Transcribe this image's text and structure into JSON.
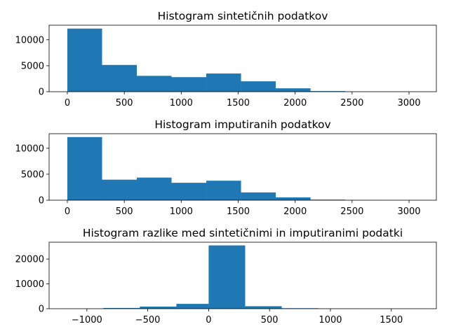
{
  "chart_data": [
    {
      "type": "bar",
      "title": "Histogram sintetičnih podatkov",
      "xlabel": "",
      "ylabel": "",
      "xlim": [
        -160,
        3240
      ],
      "ylim": [
        0,
        12800
      ],
      "xticks": [
        0,
        500,
        1000,
        1500,
        2000,
        2500,
        3000
      ],
      "yticks": [
        0,
        5000,
        10000
      ],
      "bin_edges": [
        0,
        305,
        610,
        915,
        1220,
        1525,
        1830,
        2135,
        2440,
        2745,
        3050
      ],
      "values": [
        12150,
        5150,
        3050,
        2800,
        3500,
        2000,
        650,
        120,
        30,
        10
      ],
      "bar_color": "#1f77b4"
    },
    {
      "type": "bar",
      "title": "Histogram imputiranih podatkov",
      "xlabel": "",
      "ylabel": "",
      "xlim": [
        -160,
        3240
      ],
      "ylim": [
        0,
        12800
      ],
      "xticks": [
        0,
        500,
        1000,
        1500,
        2000,
        2500,
        3000
      ],
      "yticks": [
        0,
        5000,
        10000
      ],
      "bin_edges": [
        0,
        305,
        610,
        915,
        1220,
        1525,
        1830,
        2135,
        2440,
        2745,
        3050
      ],
      "values": [
        12150,
        3950,
        4350,
        3350,
        3750,
        1500,
        550,
        110,
        30,
        10
      ],
      "bar_color": "#1f77b4"
    },
    {
      "type": "bar",
      "title": "Histogram razlike med sintetičnimi in imputiranimi podatki",
      "xlabel": "",
      "ylabel": "",
      "xlim": [
        -1310,
        1870
      ],
      "ylim": [
        0,
        26800
      ],
      "xticks": [
        -1000,
        -500,
        0,
        500,
        1000,
        1500
      ],
      "yticks": [
        0,
        10000,
        20000
      ],
      "bin_edges": [
        -1165,
        -865,
        -565,
        -265,
        0,
        300,
        600,
        900,
        1200,
        1500,
        1800
      ],
      "values": [
        30,
        300,
        850,
        1950,
        25500,
        1000,
        200,
        40,
        10,
        5
      ],
      "bar_color": "#1f77b4"
    }
  ]
}
